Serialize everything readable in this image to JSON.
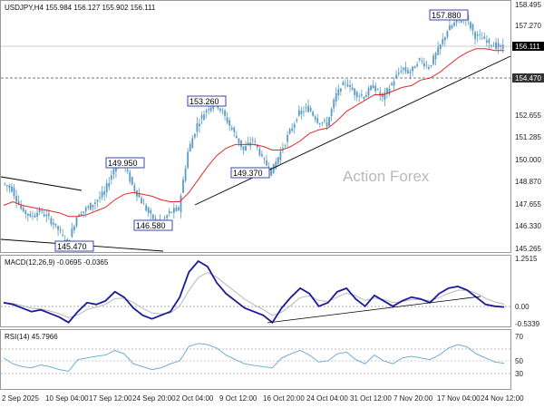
{
  "main_panel": {
    "header": "USDJPY,H4  155.984 156.127 155.902 156.111",
    "watermark": "Action Forex",
    "price_ticks": [
      "158.495",
      "157.270",
      "156.111",
      "154.470",
      "152.655",
      "151.285",
      "150.000",
      "148.870",
      "147.655",
      "146.330",
      "145.265"
    ],
    "current_price": "156.111",
    "level_line": "154.470",
    "annotations": [
      "157.880",
      "153.260",
      "149.950",
      "149.370",
      "146.580",
      "145.470"
    ],
    "colors": {
      "candles": "#5a9bc5",
      "ema": "#e0292a",
      "trendline": "#000000",
      "label_border": "#3949ab"
    }
  },
  "macd_panel": {
    "header": "MACD(12,26,9) -0.0695 -0.0365",
    "ticks": [
      "1.2515",
      "0.00",
      "-0.5339"
    ],
    "colors": {
      "macd": "#1a1a99",
      "signal": "#b8b8b8"
    }
  },
  "rsi_panel": {
    "header": "RSI(14) 45.7966",
    "ticks": [
      "70",
      "50",
      "30"
    ],
    "colors": {
      "rsi": "#5fa7d4"
    }
  },
  "x_axis": {
    "labels": [
      "2 Sep 2025",
      "10 Sep 04:00",
      "17 Sep 12:00",
      "24 Sep 20:00",
      "2 Oct 04:00",
      "9 Oct 12:00",
      "16 Oct 20:00",
      "24 Oct 04:00",
      "31 Oct 12:00",
      "7 Nov 20:00",
      "17 Nov 04:00",
      "24 Nov 12:00"
    ]
  },
  "chart_data": {
    "type": "candlestick",
    "symbol": "USDJPY",
    "timeframe": "H4",
    "ohlc_current": {
      "open": 155.984,
      "high": 156.127,
      "low": 155.902,
      "close": 156.111
    },
    "x_dates": [
      "2 Sep 2025",
      "10 Sep 04:00",
      "17 Sep 12:00",
      "24 Sep 20:00",
      "2 Oct 04:00",
      "9 Oct 12:00",
      "16 Oct 20:00",
      "24 Oct 04:00",
      "31 Oct 12:00",
      "7 Nov 20:00",
      "17 Nov 04:00",
      "24 Nov 12:00"
    ],
    "close_path": [
      148.8,
      148.5,
      147.4,
      147.0,
      147.3,
      146.9,
      146.3,
      145.5,
      147.0,
      147.4,
      147.8,
      148.3,
      149.6,
      149.9,
      148.7,
      147.8,
      147.0,
      146.6,
      147.2,
      147.4,
      150.5,
      152.0,
      152.8,
      153.2,
      152.4,
      151.5,
      150.6,
      151.2,
      150.2,
      149.4,
      150.5,
      151.6,
      152.6,
      152.9,
      152.2,
      152.0,
      153.6,
      154.3,
      153.7,
      153.5,
      154.1,
      153.4,
      154.2,
      155.0,
      154.8,
      155.5,
      155.1,
      156.0,
      157.1,
      157.6,
      157.8,
      156.8,
      156.6,
      156.3,
      156.1
    ],
    "ema_path": [
      147.6,
      147.8,
      147.6,
      147.5,
      147.4,
      147.3,
      147.2,
      147.0,
      147.0,
      147.1,
      147.3,
      147.5,
      147.9,
      148.2,
      148.3,
      148.2,
      148.1,
      147.9,
      147.8,
      147.8,
      148.3,
      149.0,
      149.7,
      150.3,
      150.7,
      150.9,
      150.9,
      150.9,
      150.8,
      150.6,
      150.6,
      150.8,
      151.1,
      151.5,
      151.7,
      151.8,
      152.2,
      152.7,
      153.0,
      153.3,
      153.6,
      153.6,
      153.8,
      154.0,
      154.1,
      154.4,
      154.5,
      154.8,
      155.2,
      155.6,
      155.9,
      156.1,
      156.1,
      156.0,
      156.0
    ],
    "macd_path": [
      0.05,
      0.0,
      -0.1,
      -0.2,
      -0.15,
      -0.25,
      -0.35,
      -0.5,
      -0.2,
      0.05,
      0.0,
      0.1,
      0.35,
      0.2,
      -0.1,
      -0.3,
      -0.4,
      -0.3,
      -0.2,
      0.2,
      0.9,
      1.2,
      1.05,
      0.6,
      0.3,
      0.1,
      -0.1,
      -0.2,
      -0.3,
      -0.5,
      -0.1,
      0.2,
      0.45,
      0.3,
      -0.05,
      0.05,
      0.35,
      0.45,
      0.15,
      -0.05,
      0.25,
      0.1,
      -0.05,
      0.1,
      0.2,
      0.15,
      0.05,
      0.3,
      0.45,
      0.5,
      0.4,
      0.2,
      0.0,
      -0.05,
      -0.07
    ],
    "rsi_path": [
      55,
      45,
      40,
      38,
      43,
      40,
      35,
      32,
      52,
      55,
      58,
      60,
      68,
      62,
      45,
      40,
      35,
      38,
      45,
      50,
      75,
      80,
      78,
      72,
      60,
      52,
      45,
      42,
      40,
      38,
      55,
      62,
      68,
      60,
      48,
      50,
      62,
      65,
      52,
      45,
      60,
      50,
      45,
      55,
      58,
      55,
      52,
      60,
      72,
      78,
      74,
      62,
      55,
      48,
      46
    ],
    "rsi_value": 45.7966,
    "macd_value": -0.0695,
    "macd_signal": -0.0365,
    "marked_levels": [
      157.88,
      153.26,
      149.95,
      149.37,
      146.58,
      145.47
    ],
    "horizontal_level": 154.47
  }
}
